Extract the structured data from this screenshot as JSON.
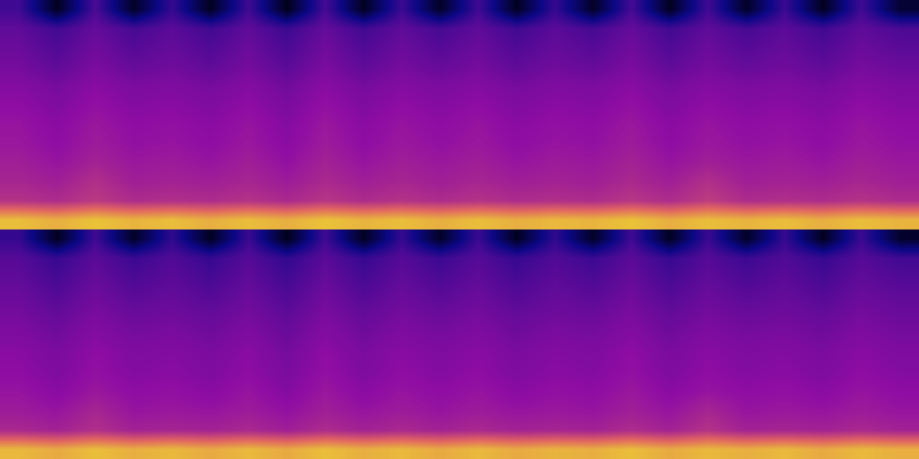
{
  "chart_data": {
    "type": "heatmap",
    "tick_labels": false,
    "value_range": [
      0,
      1
    ],
    "channels": [
      {
        "cells": [
          [
            0.3,
            0.05,
            0.32,
            0.06,
            0.28,
            0.05,
            0.3,
            0.04,
            0.31,
            0.05,
            0.29,
            0.06,
            0.3,
            0.05,
            0.28,
            0.06,
            0.31,
            0.05,
            0.3,
            0.06,
            0.29,
            0.05,
            0.3,
            0.08
          ],
          [
            0.36,
            0.3,
            0.37,
            0.31,
            0.35,
            0.3,
            0.36,
            0.29,
            0.37,
            0.3,
            0.36,
            0.31,
            0.36,
            0.3,
            0.35,
            0.31,
            0.37,
            0.3,
            0.36,
            0.31,
            0.35,
            0.3,
            0.36,
            0.32
          ],
          [
            0.38,
            0.33,
            0.39,
            0.34,
            0.37,
            0.33,
            0.38,
            0.32,
            0.39,
            0.33,
            0.38,
            0.34,
            0.38,
            0.33,
            0.37,
            0.34,
            0.39,
            0.33,
            0.38,
            0.34,
            0.37,
            0.33,
            0.38,
            0.35
          ],
          [
            0.4,
            0.36,
            0.41,
            0.37,
            0.39,
            0.36,
            0.4,
            0.35,
            0.41,
            0.36,
            0.4,
            0.37,
            0.4,
            0.36,
            0.39,
            0.37,
            0.41,
            0.36,
            0.4,
            0.37,
            0.39,
            0.36,
            0.4,
            0.38
          ],
          [
            0.43,
            0.4,
            0.44,
            0.41,
            0.42,
            0.4,
            0.43,
            0.39,
            0.44,
            0.4,
            0.43,
            0.41,
            0.43,
            0.4,
            0.42,
            0.41,
            0.44,
            0.4,
            0.43,
            0.41,
            0.42,
            0.4,
            0.43,
            0.41
          ],
          [
            0.45,
            0.42,
            0.46,
            0.43,
            0.44,
            0.42,
            0.45,
            0.41,
            0.46,
            0.42,
            0.45,
            0.43,
            0.45,
            0.42,
            0.44,
            0.43,
            0.46,
            0.42,
            0.45,
            0.43,
            0.44,
            0.42,
            0.45,
            0.43
          ],
          [
            0.47,
            0.44,
            0.48,
            0.45,
            0.46,
            0.44,
            0.47,
            0.43,
            0.48,
            0.44,
            0.47,
            0.45,
            0.47,
            0.44,
            0.46,
            0.45,
            0.48,
            0.44,
            0.47,
            0.45,
            0.46,
            0.44,
            0.47,
            0.45
          ],
          [
            0.48,
            0.45,
            0.49,
            0.46,
            0.47,
            0.45,
            0.48,
            0.44,
            0.49,
            0.45,
            0.48,
            0.46,
            0.48,
            0.45,
            0.47,
            0.46,
            0.49,
            0.45,
            0.48,
            0.46,
            0.47,
            0.45,
            0.48,
            0.46
          ],
          [
            0.5,
            0.47,
            0.51,
            0.48,
            0.49,
            0.47,
            0.5,
            0.46,
            0.51,
            0.47,
            0.5,
            0.48,
            0.5,
            0.47,
            0.49,
            0.48,
            0.51,
            0.47,
            0.5,
            0.48,
            0.49,
            0.47,
            0.5,
            0.48
          ],
          [
            0.52,
            0.5,
            0.55,
            0.5,
            0.51,
            0.5,
            0.52,
            0.49,
            0.53,
            0.5,
            0.52,
            0.5,
            0.52,
            0.5,
            0.51,
            0.5,
            0.53,
            0.5,
            0.55,
            0.5,
            0.51,
            0.5,
            0.52,
            0.5
          ],
          [
            0.56,
            0.54,
            0.58,
            0.54,
            0.55,
            0.54,
            0.56,
            0.53,
            0.57,
            0.54,
            0.56,
            0.54,
            0.56,
            0.54,
            0.55,
            0.54,
            0.57,
            0.54,
            0.59,
            0.54,
            0.55,
            0.54,
            0.56,
            0.54
          ],
          [
            0.88,
            0.85,
            0.89,
            0.86,
            0.88,
            0.85,
            0.88,
            0.85,
            0.89,
            0.86,
            0.88,
            0.85,
            0.88,
            0.85,
            0.87,
            0.86,
            0.89,
            0.85,
            0.88,
            0.86,
            0.88,
            0.85,
            0.88,
            0.86
          ]
        ]
      },
      {
        "cells": [
          [
            0.28,
            0.05,
            0.3,
            0.06,
            0.27,
            0.05,
            0.29,
            0.04,
            0.3,
            0.05,
            0.28,
            0.06,
            0.29,
            0.05,
            0.27,
            0.06,
            0.3,
            0.05,
            0.29,
            0.06,
            0.28,
            0.05,
            0.29,
            0.07
          ],
          [
            0.34,
            0.28,
            0.35,
            0.29,
            0.33,
            0.28,
            0.34,
            0.27,
            0.35,
            0.28,
            0.34,
            0.29,
            0.34,
            0.28,
            0.33,
            0.29,
            0.35,
            0.28,
            0.34,
            0.29,
            0.33,
            0.28,
            0.34,
            0.3
          ],
          [
            0.36,
            0.31,
            0.37,
            0.32,
            0.35,
            0.31,
            0.36,
            0.3,
            0.37,
            0.31,
            0.36,
            0.32,
            0.36,
            0.31,
            0.35,
            0.32,
            0.37,
            0.31,
            0.36,
            0.32,
            0.35,
            0.31,
            0.36,
            0.33
          ],
          [
            0.38,
            0.34,
            0.39,
            0.35,
            0.37,
            0.34,
            0.38,
            0.33,
            0.39,
            0.34,
            0.38,
            0.35,
            0.38,
            0.34,
            0.37,
            0.35,
            0.39,
            0.34,
            0.38,
            0.35,
            0.37,
            0.34,
            0.38,
            0.36
          ],
          [
            0.4,
            0.37,
            0.41,
            0.38,
            0.39,
            0.37,
            0.4,
            0.36,
            0.41,
            0.37,
            0.4,
            0.38,
            0.4,
            0.37,
            0.39,
            0.38,
            0.41,
            0.37,
            0.4,
            0.38,
            0.39,
            0.37,
            0.4,
            0.38
          ],
          [
            0.42,
            0.39,
            0.43,
            0.4,
            0.41,
            0.39,
            0.42,
            0.38,
            0.43,
            0.39,
            0.42,
            0.4,
            0.42,
            0.39,
            0.41,
            0.4,
            0.43,
            0.39,
            0.42,
            0.4,
            0.41,
            0.39,
            0.42,
            0.4
          ],
          [
            0.44,
            0.41,
            0.45,
            0.42,
            0.43,
            0.41,
            0.44,
            0.4,
            0.45,
            0.41,
            0.44,
            0.42,
            0.44,
            0.41,
            0.43,
            0.42,
            0.45,
            0.41,
            0.44,
            0.42,
            0.43,
            0.41,
            0.44,
            0.42
          ],
          [
            0.45,
            0.42,
            0.46,
            0.43,
            0.44,
            0.42,
            0.45,
            0.41,
            0.46,
            0.42,
            0.45,
            0.43,
            0.45,
            0.42,
            0.44,
            0.43,
            0.46,
            0.42,
            0.45,
            0.43,
            0.44,
            0.42,
            0.45,
            0.43
          ],
          [
            0.47,
            0.44,
            0.48,
            0.45,
            0.46,
            0.44,
            0.47,
            0.43,
            0.48,
            0.44,
            0.47,
            0.45,
            0.47,
            0.44,
            0.46,
            0.45,
            0.48,
            0.44,
            0.47,
            0.45,
            0.46,
            0.44,
            0.47,
            0.45
          ],
          [
            0.49,
            0.47,
            0.52,
            0.47,
            0.48,
            0.47,
            0.49,
            0.46,
            0.5,
            0.47,
            0.49,
            0.47,
            0.49,
            0.47,
            0.48,
            0.47,
            0.5,
            0.47,
            0.52,
            0.47,
            0.48,
            0.47,
            0.49,
            0.47
          ],
          [
            0.53,
            0.51,
            0.55,
            0.51,
            0.52,
            0.51,
            0.53,
            0.5,
            0.54,
            0.51,
            0.53,
            0.51,
            0.53,
            0.51,
            0.52,
            0.51,
            0.54,
            0.51,
            0.56,
            0.51,
            0.52,
            0.51,
            0.53,
            0.51
          ],
          [
            0.87,
            0.84,
            0.88,
            0.85,
            0.87,
            0.84,
            0.87,
            0.84,
            0.88,
            0.85,
            0.87,
            0.84,
            0.87,
            0.84,
            0.86,
            0.85,
            0.88,
            0.84,
            0.87,
            0.85,
            0.87,
            0.84,
            0.87,
            0.85
          ]
        ]
      }
    ]
  }
}
